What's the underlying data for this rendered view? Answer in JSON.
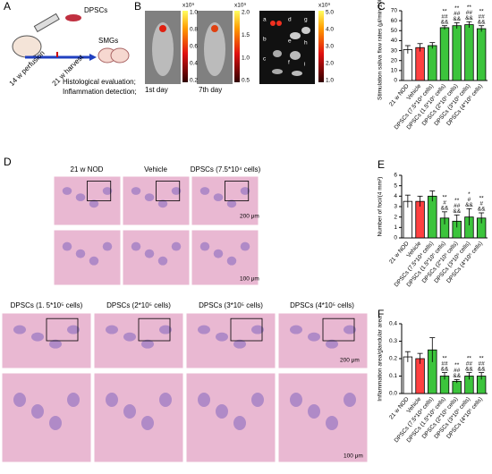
{
  "figure": {
    "panel_letters": [
      "A",
      "B",
      "C",
      "D",
      "E",
      "F"
    ],
    "A": {
      "cells": "DPSCs",
      "organ": "SMGs",
      "perfusion": "14 w perfusion",
      "harvest": "21 w harvest",
      "evaluation": [
        "Histological evaluation;",
        "Inflammation detection;"
      ]
    },
    "B": {
      "scale_unit": "x10⁹",
      "scale1": [
        "1.0",
        "0.8",
        "0.6",
        "0.4",
        "0.2"
      ],
      "scale2": [
        "2.0",
        "1.5",
        "1.0",
        "0.5"
      ],
      "scale3": [
        "5.0",
        "4.0",
        "3.0",
        "2.0",
        "1.0"
      ],
      "days": [
        "1st day",
        "7th day"
      ],
      "organs": [
        "a",
        "b",
        "c",
        "d",
        "e",
        "f",
        "g",
        "h",
        "i"
      ]
    },
    "D": {
      "top_titles": [
        "21 w NOD",
        "Vehicle",
        "DPSCs (7.5*10⁴ cells)"
      ],
      "bottom_titles": [
        "DPSCs (1. 5*10⁵ cells)",
        "DPSCs (2*10⁵ cells)",
        "DPSCs (3*10⁵ cells)",
        "DPSCs (4*10⁵ cells)"
      ],
      "scale_large": "200 μm",
      "scale_small": "100 μm"
    }
  },
  "chart_data": [
    {
      "type": "bar",
      "ylabel": "Stimulation saliva flow rates (μl/min/100 g)",
      "categories": [
        "21 w NOD",
        "Vehicle",
        "DPSCs (7.5*10⁴ cells)",
        "DPSCs (1.5*10⁵ cells)",
        "DPSCs (2*10⁵ cells)",
        "DPSCs (3*10⁵ cells)",
        "DPSCs (4*10⁵ cells)"
      ],
      "values": [
        31,
        33,
        35,
        53,
        55,
        56,
        52
      ],
      "errors": [
        4,
        4,
        3,
        2,
        3,
        3,
        3
      ],
      "colors": [
        "#ffffff",
        "#ff4040",
        "#3cc43c",
        "#3cc43c",
        "#3cc43c",
        "#3cc43c",
        "#3cc43c"
      ],
      "annotations": [
        [],
        [],
        [],
        [
          "**",
          "##",
          "&&"
        ],
        [
          "**",
          "##",
          "&&"
        ],
        [
          "**",
          "##",
          "&&"
        ],
        [
          "**",
          "##",
          "&&"
        ]
      ],
      "ylim": [
        0,
        70
      ],
      "yticks": [
        0,
        10,
        20,
        30,
        40,
        50,
        60,
        70
      ]
    },
    {
      "type": "bar",
      "ylabel": "Number of foci/(4 mm²)",
      "categories": [
        "21 w NOD",
        "Vehicle",
        "DPSCs (7.5*10⁴ cells)",
        "DPSCs (1.5*10⁵ cells)",
        "DPSCs (2*10⁵ cells)",
        "DPSCs (3*10⁵ cells)",
        "DPSCs (4*10⁵ cells)"
      ],
      "values": [
        3.5,
        3.5,
        4,
        1.9,
        1.6,
        2.0,
        1.9
      ],
      "errors": [
        0.6,
        0.5,
        0.5,
        0.6,
        0.6,
        0.8,
        0.5
      ],
      "colors": [
        "#ffffff",
        "#ff4040",
        "#3cc43c",
        "#3cc43c",
        "#3cc43c",
        "#3cc43c",
        "#3cc43c"
      ],
      "annotations": [
        [],
        [],
        [],
        [
          "**",
          "#",
          "&&"
        ],
        [
          "**",
          "##",
          "&&"
        ],
        [
          "*",
          "#",
          "&&"
        ],
        [
          "**",
          "#",
          "&&"
        ]
      ],
      "ylim": [
        0,
        6
      ],
      "yticks": [
        0,
        1,
        2,
        3,
        4,
        5,
        6
      ]
    },
    {
      "type": "bar",
      "ylabel": "Inflammation area/glandular area",
      "categories": [
        "21 w NOD",
        "Vehicle",
        "DPSCs (7.5*10⁴ cells)",
        "DPSCs (1.5*10⁵ cells)",
        "DPSCs (2*10⁵ cells)",
        "DPSCs (3*10⁵ cells)",
        "DPSCs (4*10⁵ cells)"
      ],
      "values": [
        0.21,
        0.2,
        0.25,
        0.1,
        0.07,
        0.1,
        0.1
      ],
      "errors": [
        0.03,
        0.03,
        0.07,
        0.02,
        0.01,
        0.02,
        0.02
      ],
      "colors": [
        "#ffffff",
        "#ff4040",
        "#3cc43c",
        "#3cc43c",
        "#3cc43c",
        "#3cc43c",
        "#3cc43c"
      ],
      "annotations": [
        [],
        [],
        [],
        [
          "**",
          "##",
          "&&"
        ],
        [
          "**",
          "##",
          "&&"
        ],
        [
          "**",
          "##",
          "&&"
        ],
        [
          "**",
          "##",
          "&&"
        ]
      ],
      "ylim": [
        0,
        0.4
      ],
      "yticks": [
        {
          "value": 0,
          "label": "0.0"
        },
        0.1,
        0.2,
        0.3,
        0.4
      ]
    }
  ]
}
